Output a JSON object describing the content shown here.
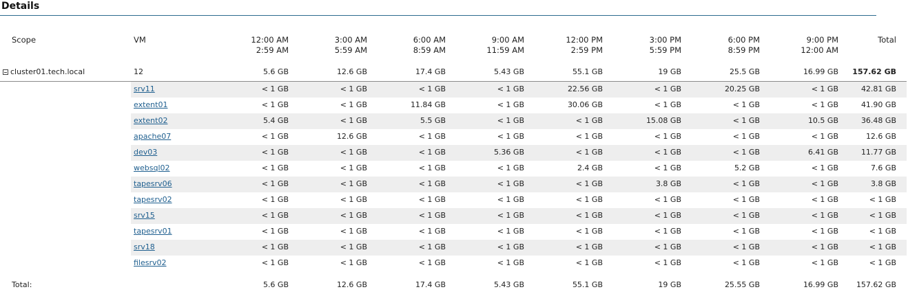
{
  "title": "Details",
  "headers": {
    "scope": "Scope",
    "vm": "VM",
    "time_columns": [
      {
        "line1": "12:00 AM",
        "line2": "2:59 AM"
      },
      {
        "line1": "3:00 AM",
        "line2": "5:59 AM"
      },
      {
        "line1": "6:00 AM",
        "line2": "8:59 AM"
      },
      {
        "line1": "9:00 AM",
        "line2": "11:59 AM"
      },
      {
        "line1": "12:00 PM",
        "line2": "2:59 PM"
      },
      {
        "line1": "3:00 PM",
        "line2": "5:59 PM"
      },
      {
        "line1": "6:00 PM",
        "line2": "8:59 PM"
      },
      {
        "line1": "9:00 PM",
        "line2": "12:00 AM"
      }
    ],
    "total": "Total"
  },
  "scope_row": {
    "name": "cluster01.tech.local",
    "vm_count": "12",
    "values": [
      "5.6 GB",
      "12.6 GB",
      "17.4 GB",
      "5.43 GB",
      "55.1 GB",
      "19 GB",
      "25.5 GB",
      "16.99 GB"
    ],
    "total": "157.62 GB"
  },
  "rows": [
    {
      "vm": "srv11",
      "values": [
        "< 1 GB",
        "< 1 GB",
        "< 1 GB",
        "< 1 GB",
        "22.56 GB",
        "< 1 GB",
        "20.25 GB",
        "< 1 GB"
      ],
      "total": "42.81 GB"
    },
    {
      "vm": "extent01",
      "values": [
        "< 1 GB",
        "< 1 GB",
        "11.84 GB",
        "< 1 GB",
        "30.06 GB",
        "< 1 GB",
        "< 1 GB",
        "< 1 GB"
      ],
      "total": "41.90 GB"
    },
    {
      "vm": "extent02",
      "values": [
        "5.4 GB",
        "< 1 GB",
        "5.5 GB",
        "< 1 GB",
        "< 1 GB",
        "15.08 GB",
        "< 1 GB",
        "10.5 GB"
      ],
      "total": "36.48 GB"
    },
    {
      "vm": "apache07",
      "values": [
        "< 1 GB",
        "12.6 GB",
        "< 1 GB",
        "< 1 GB",
        "< 1 GB",
        "< 1 GB",
        "< 1 GB",
        "< 1 GB"
      ],
      "total": "12.6 GB"
    },
    {
      "vm": "dev03",
      "values": [
        "< 1 GB",
        "< 1 GB",
        "< 1 GB",
        "5.36 GB",
        "< 1 GB",
        "< 1 GB",
        "< 1 GB",
        "6.41 GB"
      ],
      "total": "11.77 GB"
    },
    {
      "vm": "websql02",
      "values": [
        "< 1 GB",
        "< 1 GB",
        "< 1 GB",
        "< 1 GB",
        "2.4 GB",
        "< 1 GB",
        "5.2 GB",
        "< 1 GB"
      ],
      "total": "7.6 GB"
    },
    {
      "vm": "tapesrv06",
      "values": [
        "< 1 GB",
        "< 1 GB",
        "< 1 GB",
        "< 1 GB",
        "< 1 GB",
        "3.8 GB",
        "< 1 GB",
        "< 1 GB"
      ],
      "total": "3.8 GB"
    },
    {
      "vm": "tapesrv02",
      "values": [
        "< 1 GB",
        "< 1 GB",
        "< 1 GB",
        "< 1 GB",
        "< 1 GB",
        "< 1 GB",
        "< 1 GB",
        "< 1 GB"
      ],
      "total": "< 1 GB"
    },
    {
      "vm": "srv15",
      "values": [
        "< 1 GB",
        "< 1 GB",
        "< 1 GB",
        "< 1 GB",
        "< 1 GB",
        "< 1 GB",
        "< 1 GB",
        "< 1 GB"
      ],
      "total": "< 1 GB"
    },
    {
      "vm": "tapesrv01",
      "values": [
        "< 1 GB",
        "< 1 GB",
        "< 1 GB",
        "< 1 GB",
        "< 1 GB",
        "< 1 GB",
        "< 1 GB",
        "< 1 GB"
      ],
      "total": "< 1 GB"
    },
    {
      "vm": "srv18",
      "values": [
        "< 1 GB",
        "< 1 GB",
        "< 1 GB",
        "< 1 GB",
        "< 1 GB",
        "< 1 GB",
        "< 1 GB",
        "< 1 GB"
      ],
      "total": "< 1 GB"
    },
    {
      "vm": "filesrv02",
      "values": [
        "< 1 GB",
        "< 1 GB",
        "< 1 GB",
        "< 1 GB",
        "< 1 GB",
        "< 1 GB",
        "< 1 GB",
        "< 1 GB"
      ],
      "total": "< 1 GB"
    }
  ],
  "totals_row": {
    "label": "Total:",
    "values": [
      "5.6 GB",
      "12.6 GB",
      "17.4 GB",
      "5.43 GB",
      "55.1 GB",
      "19 GB",
      "25.55 GB",
      "16.99 GB"
    ],
    "total": "157.62 GB"
  }
}
